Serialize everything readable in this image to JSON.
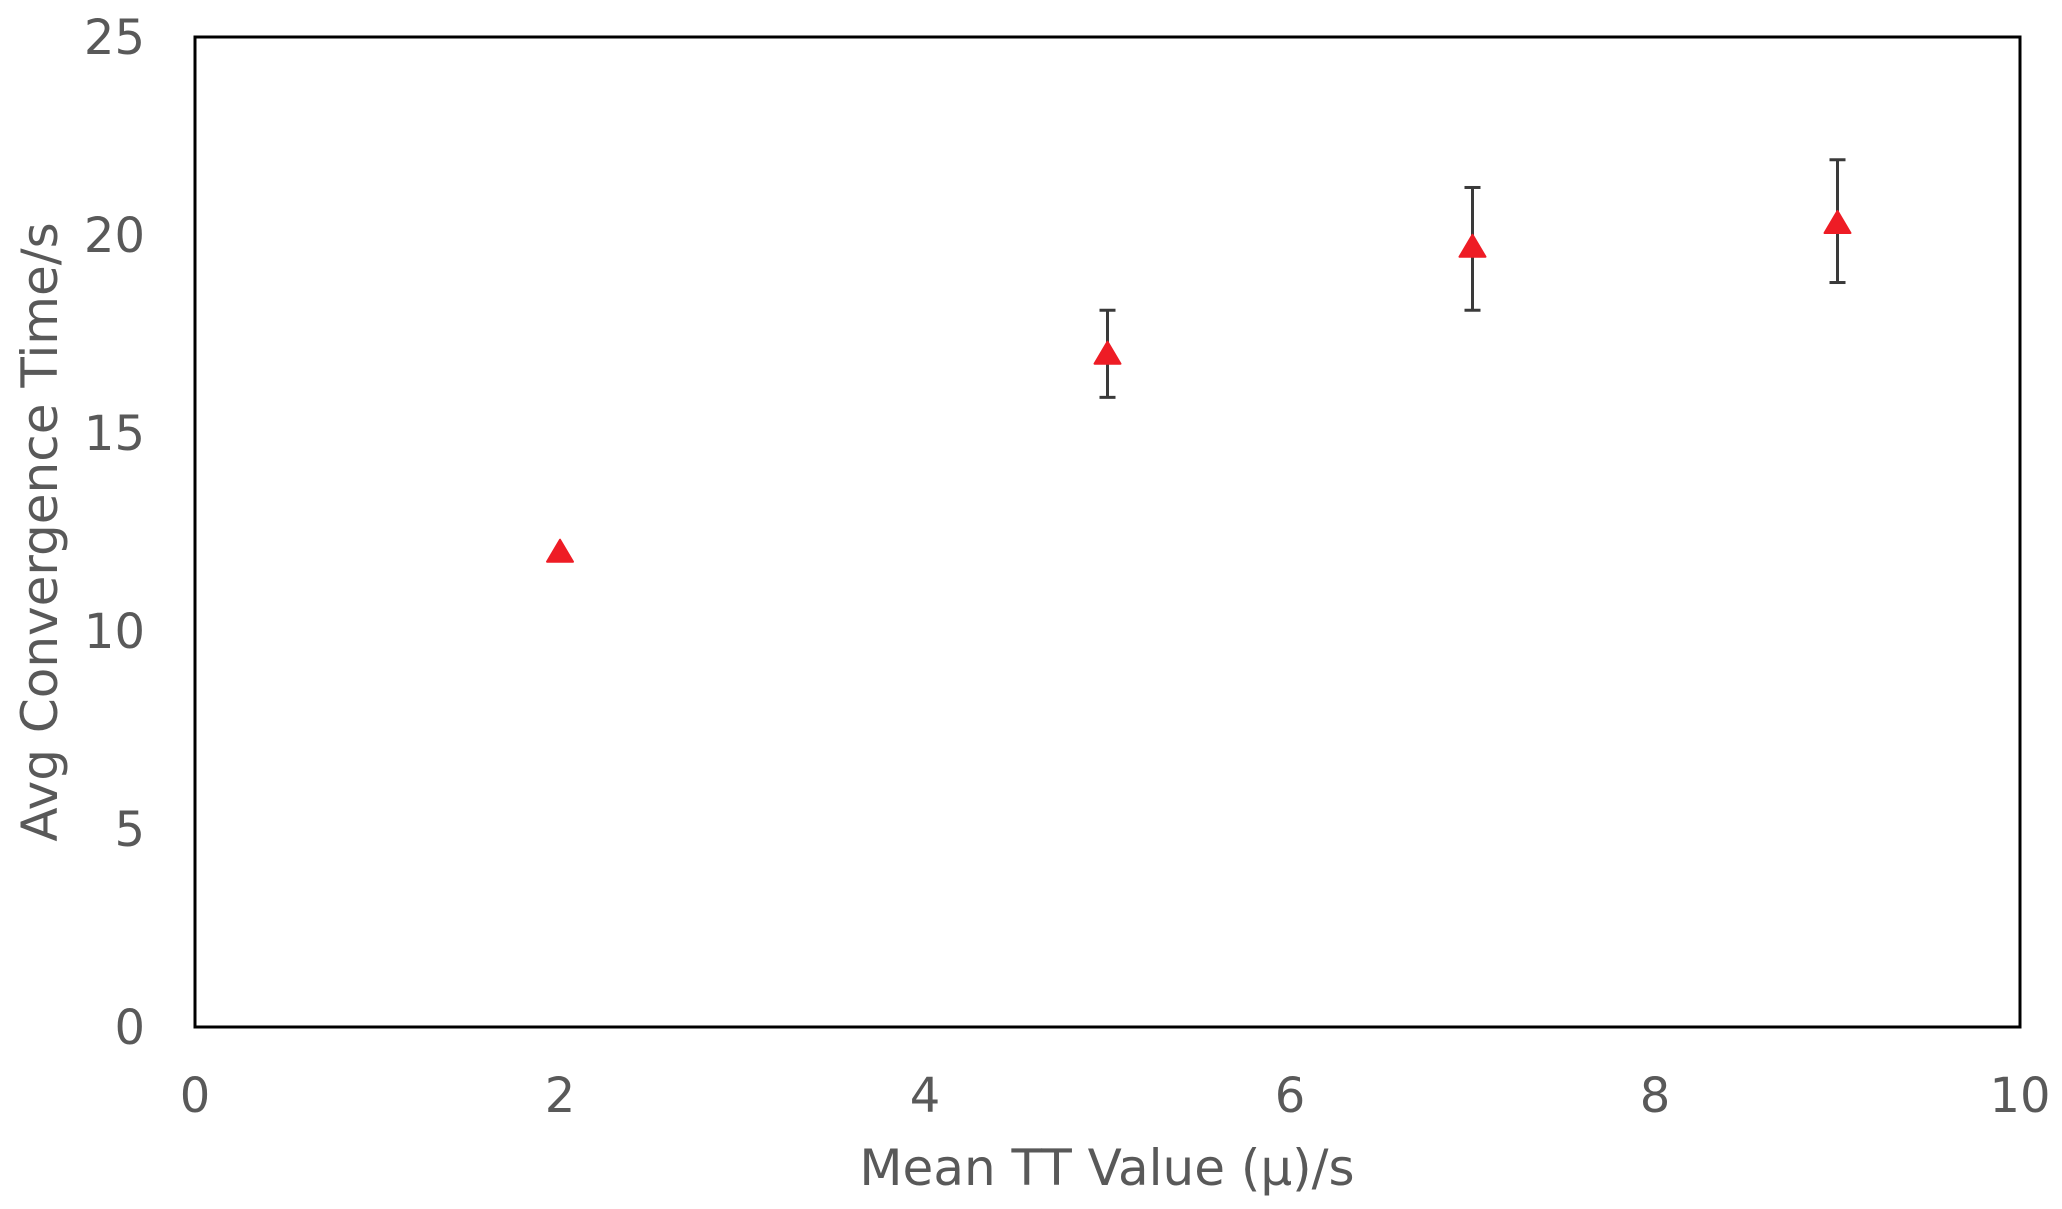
{
  "chart_data": {
    "type": "scatter",
    "xlabel": "Mean TT Value (μ)/s",
    "ylabel": "Avg Convergence Time/s",
    "xlim": [
      0,
      10
    ],
    "ylim": [
      0,
      25
    ],
    "x_ticks": [
      "0",
      "2",
      "4",
      "6",
      "8",
      "10"
    ],
    "y_ticks": [
      "0",
      "5",
      "10",
      "15",
      "20",
      "25"
    ],
    "grid": false,
    "legend": "none",
    "marker": "triangle",
    "marker_color": "#ee1c25",
    "errorbar_color": "#3a3a3a",
    "series": [
      {
        "x": [
          2,
          5,
          7,
          9
        ],
        "y": [
          12.0,
          17.0,
          19.7,
          20.3
        ],
        "error_low": [
          12.0,
          15.9,
          18.1,
          18.8
        ],
        "error_high": [
          12.0,
          18.1,
          21.2,
          21.9
        ]
      }
    ]
  }
}
